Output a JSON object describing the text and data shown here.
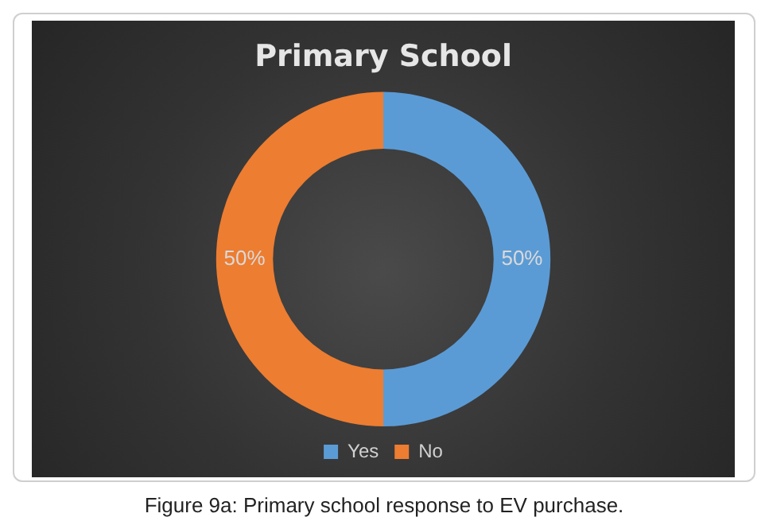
{
  "chart_data": {
    "type": "donut",
    "title": "Primary School",
    "categories": [
      "Yes",
      "No"
    ],
    "values": [
      50,
      50
    ],
    "colors": [
      "#5b9bd5",
      "#ed7d31"
    ],
    "value_labels": [
      "50%",
      "50%"
    ],
    "legend": "bottom",
    "annotations": [
      "Figure 9a: Primary school response to EV purchase."
    ]
  }
}
